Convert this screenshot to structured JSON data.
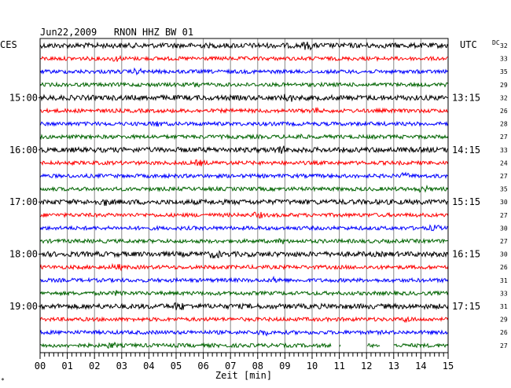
{
  "chart_data": {
    "type": "line",
    "title": "Jun22,2009   RNON HHZ BW 01",
    "left_label": "CES",
    "right_label": "UTC",
    "dc_label": "DC",
    "xlabel": "Zeit [min]",
    "x_ticks": [
      "00",
      "01",
      "02",
      "03",
      "04",
      "05",
      "06",
      "07",
      "08",
      "09",
      "10",
      "11",
      "12",
      "13",
      "14",
      "15"
    ],
    "xlim": [
      0,
      15
    ],
    "left_hour_labels": [
      "15:00",
      "16:00",
      "17:00",
      "18:00",
      "19:00"
    ],
    "right_hour_labels": [
      "13:15",
      "14:15",
      "15:15",
      "16:15",
      "17:15"
    ],
    "dc_values": [
      "32",
      "33",
      "35",
      "29",
      "32",
      "26",
      "28",
      "27",
      "33",
      "24",
      "27",
      "35",
      "30",
      "27",
      "30",
      "27",
      "30",
      "26",
      "31",
      "33",
      "31",
      "29",
      "26",
      "27"
    ],
    "trace_colors": [
      "#000000",
      "#ff0000",
      "#0000ff",
      "#006400"
    ],
    "gaps_last_trace_minutes": [
      [
        10.7,
        11.0
      ],
      [
        11.05,
        12.0
      ],
      [
        12.5,
        13.0
      ]
    ],
    "grid": true,
    "corner_mark": "*"
  }
}
